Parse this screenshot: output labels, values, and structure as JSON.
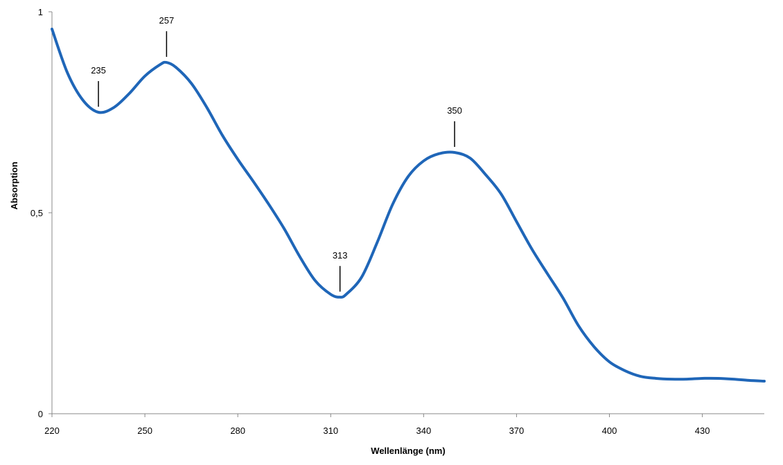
{
  "chart_data": {
    "type": "line",
    "title": "",
    "xlabel": "Wellenlänge (nm)",
    "ylabel": "Absorption",
    "xlim": [
      220,
      450
    ],
    "ylim": [
      0,
      1
    ],
    "grid": false,
    "x_ticks": [
      "220",
      "250",
      "280",
      "310",
      "340",
      "370",
      "400",
      "430"
    ],
    "x_tick_values": [
      220,
      250,
      280,
      310,
      340,
      370,
      400,
      430
    ],
    "y_ticks": [
      "0",
      "0,5",
      "1"
    ],
    "y_tick_values": [
      0,
      0.5,
      1
    ],
    "series": [
      {
        "name": "Absorption",
        "color": "#1F66B8",
        "x": [
          220,
          225,
          230,
          235,
          240,
          245,
          250,
          255,
          257,
          260,
          265,
          270,
          275,
          280,
          285,
          290,
          295,
          300,
          305,
          310,
          313,
          315,
          320,
          325,
          330,
          335,
          340,
          345,
          350,
          355,
          360,
          365,
          370,
          375,
          380,
          385,
          390,
          395,
          400,
          405,
          410,
          415,
          420,
          425,
          430,
          435,
          440,
          445,
          450
        ],
        "y": [
          0.957,
          0.848,
          0.78,
          0.75,
          0.762,
          0.797,
          0.84,
          0.869,
          0.874,
          0.862,
          0.822,
          0.762,
          0.693,
          0.633,
          0.578,
          0.521,
          0.46,
          0.391,
          0.331,
          0.297,
          0.29,
          0.297,
          0.34,
          0.426,
          0.521,
          0.59,
          0.629,
          0.647,
          0.65,
          0.636,
          0.595,
          0.547,
          0.478,
          0.409,
          0.348,
          0.288,
          0.219,
          0.167,
          0.129,
          0.107,
          0.093,
          0.088,
          0.086,
          0.086,
          0.088,
          0.088,
          0.086,
          0.083,
          0.081
        ]
      }
    ],
    "annotations": [
      {
        "label": "235",
        "x": 235,
        "y": 0.75
      },
      {
        "label": "257",
        "x": 257,
        "y": 0.874
      },
      {
        "label": "313",
        "x": 313,
        "y": 0.29
      },
      {
        "label": "350",
        "x": 350,
        "y": 0.65
      }
    ]
  }
}
